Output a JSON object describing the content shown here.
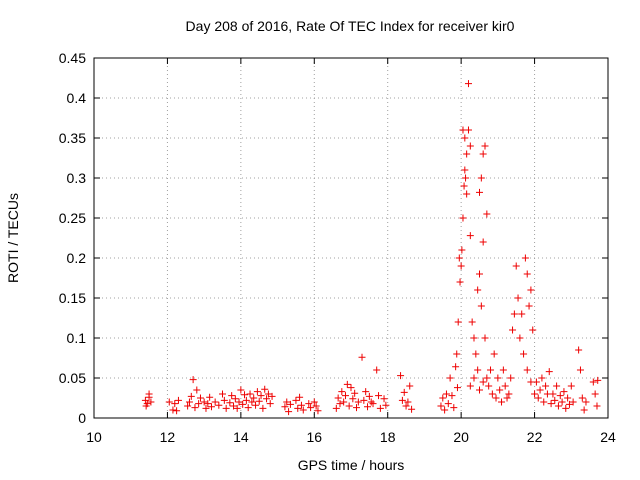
{
  "chart_data": {
    "type": "scatter",
    "title": "Day 208 of 2016, Rate Of TEC Index for receiver kir0",
    "xlabel": "GPS time / hours",
    "ylabel": "ROTI / TECUs",
    "xlim": [
      10,
      24
    ],
    "ylim": [
      0,
      0.45
    ],
    "xticks": [
      "10",
      "12",
      "14",
      "16",
      "18",
      "20",
      "22",
      "24"
    ],
    "yticks": [
      "0",
      "0.05",
      "0.1",
      "0.15",
      "0.2",
      "0.25",
      "0.3",
      "0.35",
      "0.4",
      "0.45"
    ],
    "grid": true,
    "marker": "+",
    "color": "#ee0000",
    "series": [
      {
        "name": "ROTI",
        "points": [
          [
            11.4,
            0.022
          ],
          [
            11.45,
            0.018
          ],
          [
            11.5,
            0.026
          ],
          [
            11.55,
            0.02
          ],
          [
            11.5,
            0.03
          ],
          [
            11.42,
            0.015
          ],
          [
            12.05,
            0.02
          ],
          [
            12.15,
            0.01
          ],
          [
            12.2,
            0.018
          ],
          [
            12.25,
            0.009
          ],
          [
            12.3,
            0.022
          ],
          [
            12.55,
            0.015
          ],
          [
            12.6,
            0.02
          ],
          [
            12.65,
            0.027
          ],
          [
            12.7,
            0.048
          ],
          [
            12.75,
            0.013
          ],
          [
            12.8,
            0.035
          ],
          [
            12.85,
            0.018
          ],
          [
            12.9,
            0.025
          ],
          [
            13.0,
            0.02
          ],
          [
            13.05,
            0.012
          ],
          [
            13.1,
            0.018
          ],
          [
            13.15,
            0.026
          ],
          [
            13.2,
            0.014
          ],
          [
            13.3,
            0.02
          ],
          [
            13.4,
            0.016
          ],
          [
            13.5,
            0.03
          ],
          [
            13.55,
            0.022
          ],
          [
            13.6,
            0.012
          ],
          [
            13.7,
            0.019
          ],
          [
            13.75,
            0.028
          ],
          [
            13.8,
            0.015
          ],
          [
            13.85,
            0.024
          ],
          [
            13.9,
            0.012
          ],
          [
            13.95,
            0.02
          ],
          [
            14.0,
            0.035
          ],
          [
            14.05,
            0.017
          ],
          [
            14.1,
            0.029
          ],
          [
            14.15,
            0.022
          ],
          [
            14.2,
            0.013
          ],
          [
            14.25,
            0.03
          ],
          [
            14.3,
            0.02
          ],
          [
            14.35,
            0.025
          ],
          [
            14.4,
            0.016
          ],
          [
            14.45,
            0.033
          ],
          [
            14.5,
            0.021
          ],
          [
            14.55,
            0.028
          ],
          [
            14.6,
            0.012
          ],
          [
            14.65,
            0.036
          ],
          [
            14.7,
            0.024
          ],
          [
            14.75,
            0.03
          ],
          [
            14.8,
            0.018
          ],
          [
            14.85,
            0.027
          ],
          [
            15.2,
            0.014
          ],
          [
            15.25,
            0.02
          ],
          [
            15.3,
            0.008
          ],
          [
            15.35,
            0.017
          ],
          [
            15.5,
            0.022
          ],
          [
            15.55,
            0.012
          ],
          [
            15.6,
            0.026
          ],
          [
            15.65,
            0.016
          ],
          [
            15.7,
            0.01
          ],
          [
            15.85,
            0.018
          ],
          [
            15.9,
            0.013
          ],
          [
            16.0,
            0.02
          ],
          [
            16.05,
            0.015
          ],
          [
            16.1,
            0.009
          ],
          [
            16.6,
            0.012
          ],
          [
            16.65,
            0.025
          ],
          [
            16.7,
            0.018
          ],
          [
            16.75,
            0.033
          ],
          [
            16.8,
            0.02
          ],
          [
            16.85,
            0.028
          ],
          [
            16.9,
            0.042
          ],
          [
            16.95,
            0.015
          ],
          [
            17.0,
            0.038
          ],
          [
            17.05,
            0.024
          ],
          [
            17.1,
            0.031
          ],
          [
            17.15,
            0.013
          ],
          [
            17.2,
            0.02
          ],
          [
            17.3,
            0.076
          ],
          [
            17.35,
            0.022
          ],
          [
            17.4,
            0.033
          ],
          [
            17.45,
            0.014
          ],
          [
            17.5,
            0.027
          ],
          [
            17.55,
            0.02
          ],
          [
            17.6,
            0.018
          ],
          [
            17.7,
            0.06
          ],
          [
            17.75,
            0.028
          ],
          [
            17.8,
            0.012
          ],
          [
            17.9,
            0.024
          ],
          [
            17.95,
            0.016
          ],
          [
            18.35,
            0.053
          ],
          [
            18.4,
            0.022
          ],
          [
            18.45,
            0.032
          ],
          [
            18.5,
            0.015
          ],
          [
            18.55,
            0.02
          ],
          [
            18.6,
            0.04
          ],
          [
            18.65,
            0.011
          ],
          [
            19.45,
            0.015
          ],
          [
            19.5,
            0.025
          ],
          [
            19.55,
            0.01
          ],
          [
            19.6,
            0.03
          ],
          [
            19.65,
            0.018
          ],
          [
            19.7,
            0.05
          ],
          [
            19.75,
            0.028
          ],
          [
            19.8,
            0.013
          ],
          [
            19.85,
            0.064
          ],
          [
            19.88,
            0.08
          ],
          [
            19.9,
            0.038
          ],
          [
            19.92,
            0.12
          ],
          [
            19.95,
            0.2
          ],
          [
            19.97,
            0.17
          ],
          [
            20.0,
            0.19
          ],
          [
            20.02,
            0.21
          ],
          [
            20.05,
            0.25
          ],
          [
            20.08,
            0.29
          ],
          [
            20.1,
            0.31
          ],
          [
            20.12,
            0.3
          ],
          [
            20.15,
            0.33
          ],
          [
            20.05,
            0.36
          ],
          [
            20.1,
            0.35
          ],
          [
            20.15,
            0.28
          ],
          [
            20.2,
            0.36
          ],
          [
            20.25,
            0.34
          ],
          [
            20.2,
            0.418
          ],
          [
            20.25,
            0.228
          ],
          [
            20.3,
            0.12
          ],
          [
            20.35,
            0.1
          ],
          [
            20.4,
            0.08
          ],
          [
            20.45,
            0.16
          ],
          [
            20.5,
            0.18
          ],
          [
            20.55,
            0.14
          ],
          [
            20.6,
            0.33
          ],
          [
            20.65,
            0.34
          ],
          [
            20.7,
            0.255
          ],
          [
            20.55,
            0.3
          ],
          [
            20.5,
            0.282
          ],
          [
            20.6,
            0.22
          ],
          [
            20.65,
            0.1
          ],
          [
            20.7,
            0.05
          ],
          [
            20.35,
            0.05
          ],
          [
            20.25,
            0.04
          ],
          [
            20.45,
            0.06
          ],
          [
            20.5,
            0.035
          ],
          [
            20.6,
            0.045
          ],
          [
            20.75,
            0.04
          ],
          [
            20.8,
            0.06
          ],
          [
            20.85,
            0.03
          ],
          [
            20.9,
            0.08
          ],
          [
            20.95,
            0.025
          ],
          [
            21.0,
            0.05
          ],
          [
            21.05,
            0.035
          ],
          [
            21.1,
            0.02
          ],
          [
            21.15,
            0.06
          ],
          [
            21.2,
            0.04
          ],
          [
            21.25,
            0.025
          ],
          [
            21.3,
            0.03
          ],
          [
            21.35,
            0.05
          ],
          [
            21.4,
            0.11
          ],
          [
            21.45,
            0.13
          ],
          [
            21.5,
            0.19
          ],
          [
            21.55,
            0.15
          ],
          [
            21.6,
            0.1
          ],
          [
            21.65,
            0.13
          ],
          [
            21.7,
            0.08
          ],
          [
            21.75,
            0.2
          ],
          [
            21.8,
            0.18
          ],
          [
            21.85,
            0.14
          ],
          [
            21.9,
            0.16
          ],
          [
            21.95,
            0.11
          ],
          [
            21.8,
            0.06
          ],
          [
            21.9,
            0.045
          ],
          [
            22.0,
            0.03
          ],
          [
            22.05,
            0.045
          ],
          [
            22.1,
            0.025
          ],
          [
            22.15,
            0.035
          ],
          [
            22.2,
            0.05
          ],
          [
            22.25,
            0.02
          ],
          [
            22.3,
            0.04
          ],
          [
            22.35,
            0.03
          ],
          [
            22.4,
            0.058
          ],
          [
            22.45,
            0.018
          ],
          [
            22.5,
            0.03
          ],
          [
            22.55,
            0.022
          ],
          [
            22.6,
            0.04
          ],
          [
            22.65,
            0.015
          ],
          [
            22.7,
            0.028
          ],
          [
            22.75,
            0.02
          ],
          [
            22.8,
            0.033
          ],
          [
            22.85,
            0.012
          ],
          [
            22.9,
            0.025
          ],
          [
            22.95,
            0.017
          ],
          [
            23.0,
            0.04
          ],
          [
            23.05,
            0.02
          ],
          [
            23.2,
            0.085
          ],
          [
            23.25,
            0.06
          ],
          [
            23.3,
            0.025
          ],
          [
            23.35,
            0.01
          ],
          [
            23.4,
            0.02
          ],
          [
            23.6,
            0.045
          ],
          [
            23.65,
            0.03
          ],
          [
            23.7,
            0.015
          ],
          [
            23.72,
            0.047
          ]
        ]
      }
    ]
  }
}
